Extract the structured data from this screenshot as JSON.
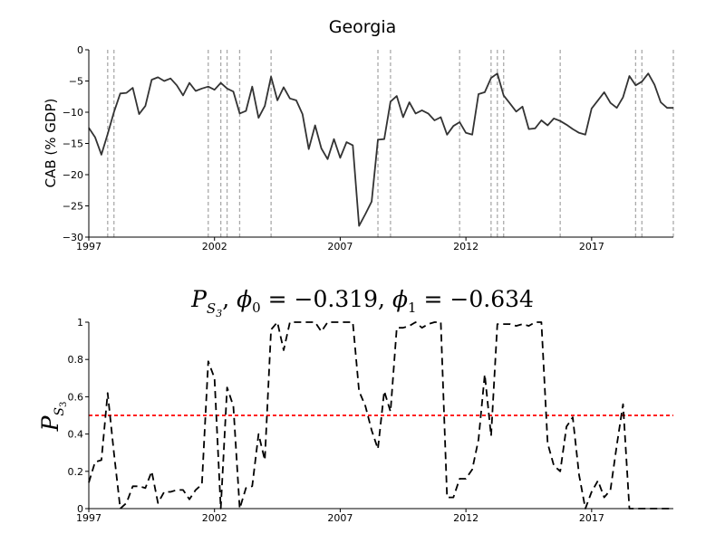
{
  "chart_data": [
    {
      "type": "line",
      "title": "Georgia",
      "xlabel": "",
      "ylabel": "CAB (% GDP)",
      "xlim": [
        1997,
        2020.25
      ],
      "ylim": [
        -30,
        0
      ],
      "xticks": [
        "1997",
        "2002",
        "2007",
        "2012",
        "2017"
      ],
      "yticks": [
        "0",
        "-5",
        "-10",
        "-15",
        "-20",
        "-25",
        "-30"
      ],
      "grid": false,
      "line_color": "#333333",
      "vlines": [
        1997.75,
        1998.0,
        2001.75,
        2002.25,
        2002.5,
        2003.0,
        2004.25,
        2008.5,
        2009.0,
        2011.75,
        2013.0,
        2013.25,
        2013.5,
        2015.75,
        2018.75,
        2019.0,
        2020.25
      ],
      "vline_color": "#aaaaaa",
      "series": [
        {
          "x": [
            1997.0,
            1997.25,
            1997.5,
            1997.75,
            1998.0,
            1998.25,
            1998.5,
            1998.75,
            1999.0,
            1999.25,
            1999.5,
            1999.75,
            2000.0,
            2000.25,
            2000.5,
            2000.75,
            2001.0,
            2001.25,
            2001.5,
            2001.75,
            2002.0,
            2002.25,
            2002.5,
            2002.75,
            2003.0,
            2003.25,
            2003.5,
            2003.75,
            2004.0,
            2004.25,
            2004.5,
            2004.75,
            2005.0,
            2005.25,
            2005.5,
            2005.75,
            2006.0,
            2006.25,
            2006.5,
            2006.75,
            2007.0,
            2007.25,
            2007.5,
            2007.75,
            2008.0,
            2008.25,
            2008.5,
            2008.75,
            2009.0,
            2009.25,
            2009.5,
            2009.75,
            2010.0,
            2010.25,
            2010.5,
            2010.75,
            2011.0,
            2011.25,
            2011.5,
            2011.75,
            2012.0,
            2012.25,
            2012.5,
            2012.75,
            2013.0,
            2013.25,
            2013.5,
            2013.75,
            2014.0,
            2014.25,
            2014.5,
            2014.75,
            2015.0,
            2015.25,
            2015.5,
            2015.75,
            2016.0,
            2016.25,
            2016.5,
            2016.75,
            2017.0,
            2017.25,
            2017.5,
            2017.75,
            2018.0,
            2018.25,
            2018.5,
            2018.75,
            2019.0,
            2019.25,
            2019.5,
            2019.75,
            2020.0,
            2020.25
          ],
          "y": [
            -12.5,
            -14.0,
            -16.8,
            -13.5,
            -10.0,
            -7.0,
            -6.9,
            -6.1,
            -10.3,
            -9.0,
            -4.8,
            -4.4,
            -5.0,
            -4.6,
            -5.7,
            -7.3,
            -5.3,
            -6.6,
            -6.2,
            -5.9,
            -6.4,
            -5.3,
            -6.2,
            -6.7,
            -10.2,
            -9.8,
            -5.9,
            -10.9,
            -9.0,
            -4.3,
            -8.1,
            -6.0,
            -7.8,
            -8.1,
            -10.3,
            -15.9,
            -12.1,
            -15.8,
            -17.5,
            -14.3,
            -17.3,
            -14.8,
            -15.3,
            -28.2,
            -26.3,
            -24.3,
            -14.4,
            -14.3,
            -8.3,
            -7.4,
            -10.8,
            -8.4,
            -10.2,
            -9.7,
            -10.2,
            -11.3,
            -10.8,
            -13.6,
            -12.2,
            -11.6,
            -13.3,
            -13.6,
            -7.1,
            -6.8,
            -4.5,
            -3.8,
            -7.3,
            -8.6,
            -9.9,
            -9.1,
            -12.7,
            -12.6,
            -11.3,
            -12.1,
            -11.0,
            -11.4,
            -12.0,
            -12.7,
            -13.3,
            -13.6,
            -9.4,
            -8.1,
            -6.8,
            -8.5,
            -9.3,
            -7.6,
            -4.2,
            -5.7,
            -5.1,
            -3.8,
            -5.6,
            -8.4,
            -9.3,
            -9.3
          ]
        }
      ]
    },
    {
      "type": "line",
      "title": "P_{S_3}, φ_0 = −0.319, φ_1 = −0.634",
      "xlabel": "",
      "ylabel": "P_{S_3}",
      "xlim": [
        1997,
        2020.25
      ],
      "ylim": [
        0,
        1
      ],
      "xticks": [
        "1997",
        "2002",
        "2007",
        "2012",
        "2017"
      ],
      "yticks": [
        "0",
        "0.2",
        "0.4",
        "0.6",
        "0.8",
        "1"
      ],
      "grid": false,
      "threshold": 0.5,
      "threshold_color": "#ff0000",
      "line_color": "#000000",
      "line_style": "dashed",
      "series": [
        {
          "x": [
            1997.0,
            1997.25,
            1997.5,
            1997.75,
            1998.0,
            1998.25,
            1998.5,
            1998.75,
            1999.0,
            1999.25,
            1999.5,
            1999.75,
            2000.0,
            2000.25,
            2000.5,
            2000.75,
            2001.0,
            2001.25,
            2001.5,
            2001.75,
            2002.0,
            2002.25,
            2002.5,
            2002.75,
            2003.0,
            2003.25,
            2003.5,
            2003.75,
            2004.0,
            2004.25,
            2004.5,
            2004.75,
            2005.0,
            2005.25,
            2005.5,
            2005.75,
            2006.0,
            2006.25,
            2006.5,
            2006.75,
            2007.0,
            2007.25,
            2007.5,
            2007.75,
            2008.0,
            2008.25,
            2008.5,
            2008.75,
            2009.0,
            2009.25,
            2009.5,
            2009.75,
            2010.0,
            2010.25,
            2010.5,
            2010.75,
            2011.0,
            2011.25,
            2011.5,
            2011.75,
            2012.0,
            2012.25,
            2012.5,
            2012.75,
            2013.0,
            2013.25,
            2013.5,
            2013.75,
            2014.0,
            2014.25,
            2014.5,
            2014.75,
            2015.0,
            2015.25,
            2015.5,
            2015.75,
            2016.0,
            2016.25,
            2016.5,
            2016.75,
            2017.0,
            2017.25,
            2017.5,
            2017.75,
            2018.0,
            2018.25,
            2018.5,
            2018.75,
            2019.0,
            2019.25,
            2019.5,
            2019.75,
            2020.0,
            2020.25
          ],
          "y": [
            0.14,
            0.25,
            0.26,
            0.62,
            0.3,
            0.0,
            0.03,
            0.12,
            0.12,
            0.11,
            0.2,
            0.03,
            0.09,
            0.09,
            0.1,
            0.1,
            0.05,
            0.1,
            0.13,
            0.79,
            0.7,
            0.0,
            0.65,
            0.55,
            0.0,
            0.11,
            0.12,
            0.4,
            0.26,
            0.96,
            1.0,
            0.85,
            1.0,
            1.0,
            1.0,
            1.0,
            1.0,
            0.95,
            1.0,
            1.0,
            1.0,
            1.0,
            1.0,
            0.63,
            0.55,
            0.42,
            0.32,
            0.63,
            0.52,
            0.97,
            0.97,
            0.98,
            1.0,
            0.97,
            0.99,
            1.0,
            1.0,
            0.06,
            0.06,
            0.16,
            0.16,
            0.21,
            0.37,
            0.72,
            0.39,
            0.99,
            0.99,
            0.99,
            0.98,
            0.99,
            0.98,
            1.0,
            1.0,
            0.35,
            0.23,
            0.2,
            0.44,
            0.49,
            0.18,
            0.0,
            0.09,
            0.15,
            0.06,
            0.1,
            0.34,
            0.56,
            0.0,
            0.0,
            0.0,
            0.0,
            0.0,
            0.0,
            0.0,
            0.0
          ]
        }
      ]
    }
  ]
}
